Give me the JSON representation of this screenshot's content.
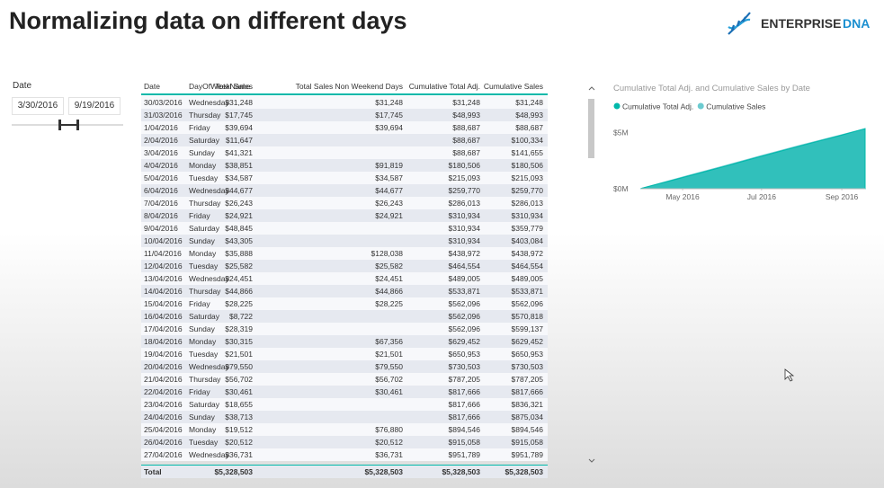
{
  "header": {
    "title": "Normalizing data on different days",
    "logo_primary": "ENTERPRISE",
    "logo_secondary": "DNA"
  },
  "slicer": {
    "label": "Date",
    "start": "3/30/2016",
    "end": "9/19/2016"
  },
  "table": {
    "columns": [
      "Date",
      "DayOfWeekName",
      "Total Sales",
      "Total Sales Non Weekend Days",
      "Cumulative Total Adj.",
      "Cumulative Sales"
    ],
    "rows": [
      [
        "30/03/2016",
        "Wednesday",
        "$31,248",
        "$31,248",
        "$31,248",
        "$31,248"
      ],
      [
        "31/03/2016",
        "Thursday",
        "$17,745",
        "$17,745",
        "$48,993",
        "$48,993"
      ],
      [
        "1/04/2016",
        "Friday",
        "$39,694",
        "$39,694",
        "$88,687",
        "$88,687"
      ],
      [
        "2/04/2016",
        "Saturday",
        "$11,647",
        null,
        "$88,687",
        "$100,334"
      ],
      [
        "3/04/2016",
        "Sunday",
        "$41,321",
        null,
        "$88,687",
        "$141,655"
      ],
      [
        "4/04/2016",
        "Monday",
        "$38,851",
        "$91,819",
        "$180,506",
        "$180,506"
      ],
      [
        "5/04/2016",
        "Tuesday",
        "$34,587",
        "$34,587",
        "$215,093",
        "$215,093"
      ],
      [
        "6/04/2016",
        "Wednesday",
        "$44,677",
        "$44,677",
        "$259,770",
        "$259,770"
      ],
      [
        "7/04/2016",
        "Thursday",
        "$26,243",
        "$26,243",
        "$286,013",
        "$286,013"
      ],
      [
        "8/04/2016",
        "Friday",
        "$24,921",
        "$24,921",
        "$310,934",
        "$310,934"
      ],
      [
        "9/04/2016",
        "Saturday",
        "$48,845",
        null,
        "$310,934",
        "$359,779"
      ],
      [
        "10/04/2016",
        "Sunday",
        "$43,305",
        null,
        "$310,934",
        "$403,084"
      ],
      [
        "11/04/2016",
        "Monday",
        "$35,888",
        "$128,038",
        "$438,972",
        "$438,972"
      ],
      [
        "12/04/2016",
        "Tuesday",
        "$25,582",
        "$25,582",
        "$464,554",
        "$464,554"
      ],
      [
        "13/04/2016",
        "Wednesday",
        "$24,451",
        "$24,451",
        "$489,005",
        "$489,005"
      ],
      [
        "14/04/2016",
        "Thursday",
        "$44,866",
        "$44,866",
        "$533,871",
        "$533,871"
      ],
      [
        "15/04/2016",
        "Friday",
        "$28,225",
        "$28,225",
        "$562,096",
        "$562,096"
      ],
      [
        "16/04/2016",
        "Saturday",
        "$8,722",
        null,
        "$562,096",
        "$570,818"
      ],
      [
        "17/04/2016",
        "Sunday",
        "$28,319",
        null,
        "$562,096",
        "$599,137"
      ],
      [
        "18/04/2016",
        "Monday",
        "$30,315",
        "$67,356",
        "$629,452",
        "$629,452"
      ],
      [
        "19/04/2016",
        "Tuesday",
        "$21,501",
        "$21,501",
        "$650,953",
        "$650,953"
      ],
      [
        "20/04/2016",
        "Wednesday",
        "$79,550",
        "$79,550",
        "$730,503",
        "$730,503"
      ],
      [
        "21/04/2016",
        "Thursday",
        "$56,702",
        "$56,702",
        "$787,205",
        "$787,205"
      ],
      [
        "22/04/2016",
        "Friday",
        "$30,461",
        "$30,461",
        "$817,666",
        "$817,666"
      ],
      [
        "23/04/2016",
        "Saturday",
        "$18,655",
        null,
        "$817,666",
        "$836,321"
      ],
      [
        "24/04/2016",
        "Sunday",
        "$38,713",
        null,
        "$817,666",
        "$875,034"
      ],
      [
        "25/04/2016",
        "Monday",
        "$19,512",
        "$76,880",
        "$894,546",
        "$894,546"
      ],
      [
        "26/04/2016",
        "Tuesday",
        "$20,512",
        "$20,512",
        "$915,058",
        "$915,058"
      ],
      [
        "27/04/2016",
        "Wednesday",
        "$36,731",
        "$36,731",
        "$951,789",
        "$951,789"
      ]
    ],
    "total": [
      "Total",
      null,
      "$5,328,503",
      "$5,328,503",
      "$5,328,503",
      "$5,328,503"
    ]
  },
  "chart": {
    "type": "area",
    "title": "Cumulative Total Adj. and Cumulative Sales by Date",
    "x": [
      "2016-03-30",
      "2016-04-30",
      "2016-05-31",
      "2016-06-30",
      "2016-07-31",
      "2016-08-31",
      "2016-09-19"
    ],
    "series": [
      {
        "name": "Cumulative Sales",
        "color": "#6ccbd0",
        "values": [
          31248,
          1010000,
          1960000,
          2910000,
          3860000,
          4760000,
          5328503
        ]
      },
      {
        "name": "Cumulative Total Adj.",
        "color": "#01b8aa",
        "values": [
          31248,
          960000,
          1900000,
          2850000,
          3800000,
          4720000,
          5328503
        ]
      }
    ],
    "legend_order": [
      1,
      0
    ],
    "xlim": [
      "2016-03-30",
      "2016-09-19"
    ],
    "xticks": [
      {
        "value": "2016-05-01",
        "label": "May 2016"
      },
      {
        "value": "2016-07-01",
        "label": "Jul 2016"
      },
      {
        "value": "2016-09-01",
        "label": "Sep 2016"
      }
    ],
    "ylim": [
      0,
      5500000
    ],
    "yticks": [
      {
        "value": 0,
        "label": "$0M"
      },
      {
        "value": 5000000,
        "label": "$5M"
      }
    ]
  }
}
